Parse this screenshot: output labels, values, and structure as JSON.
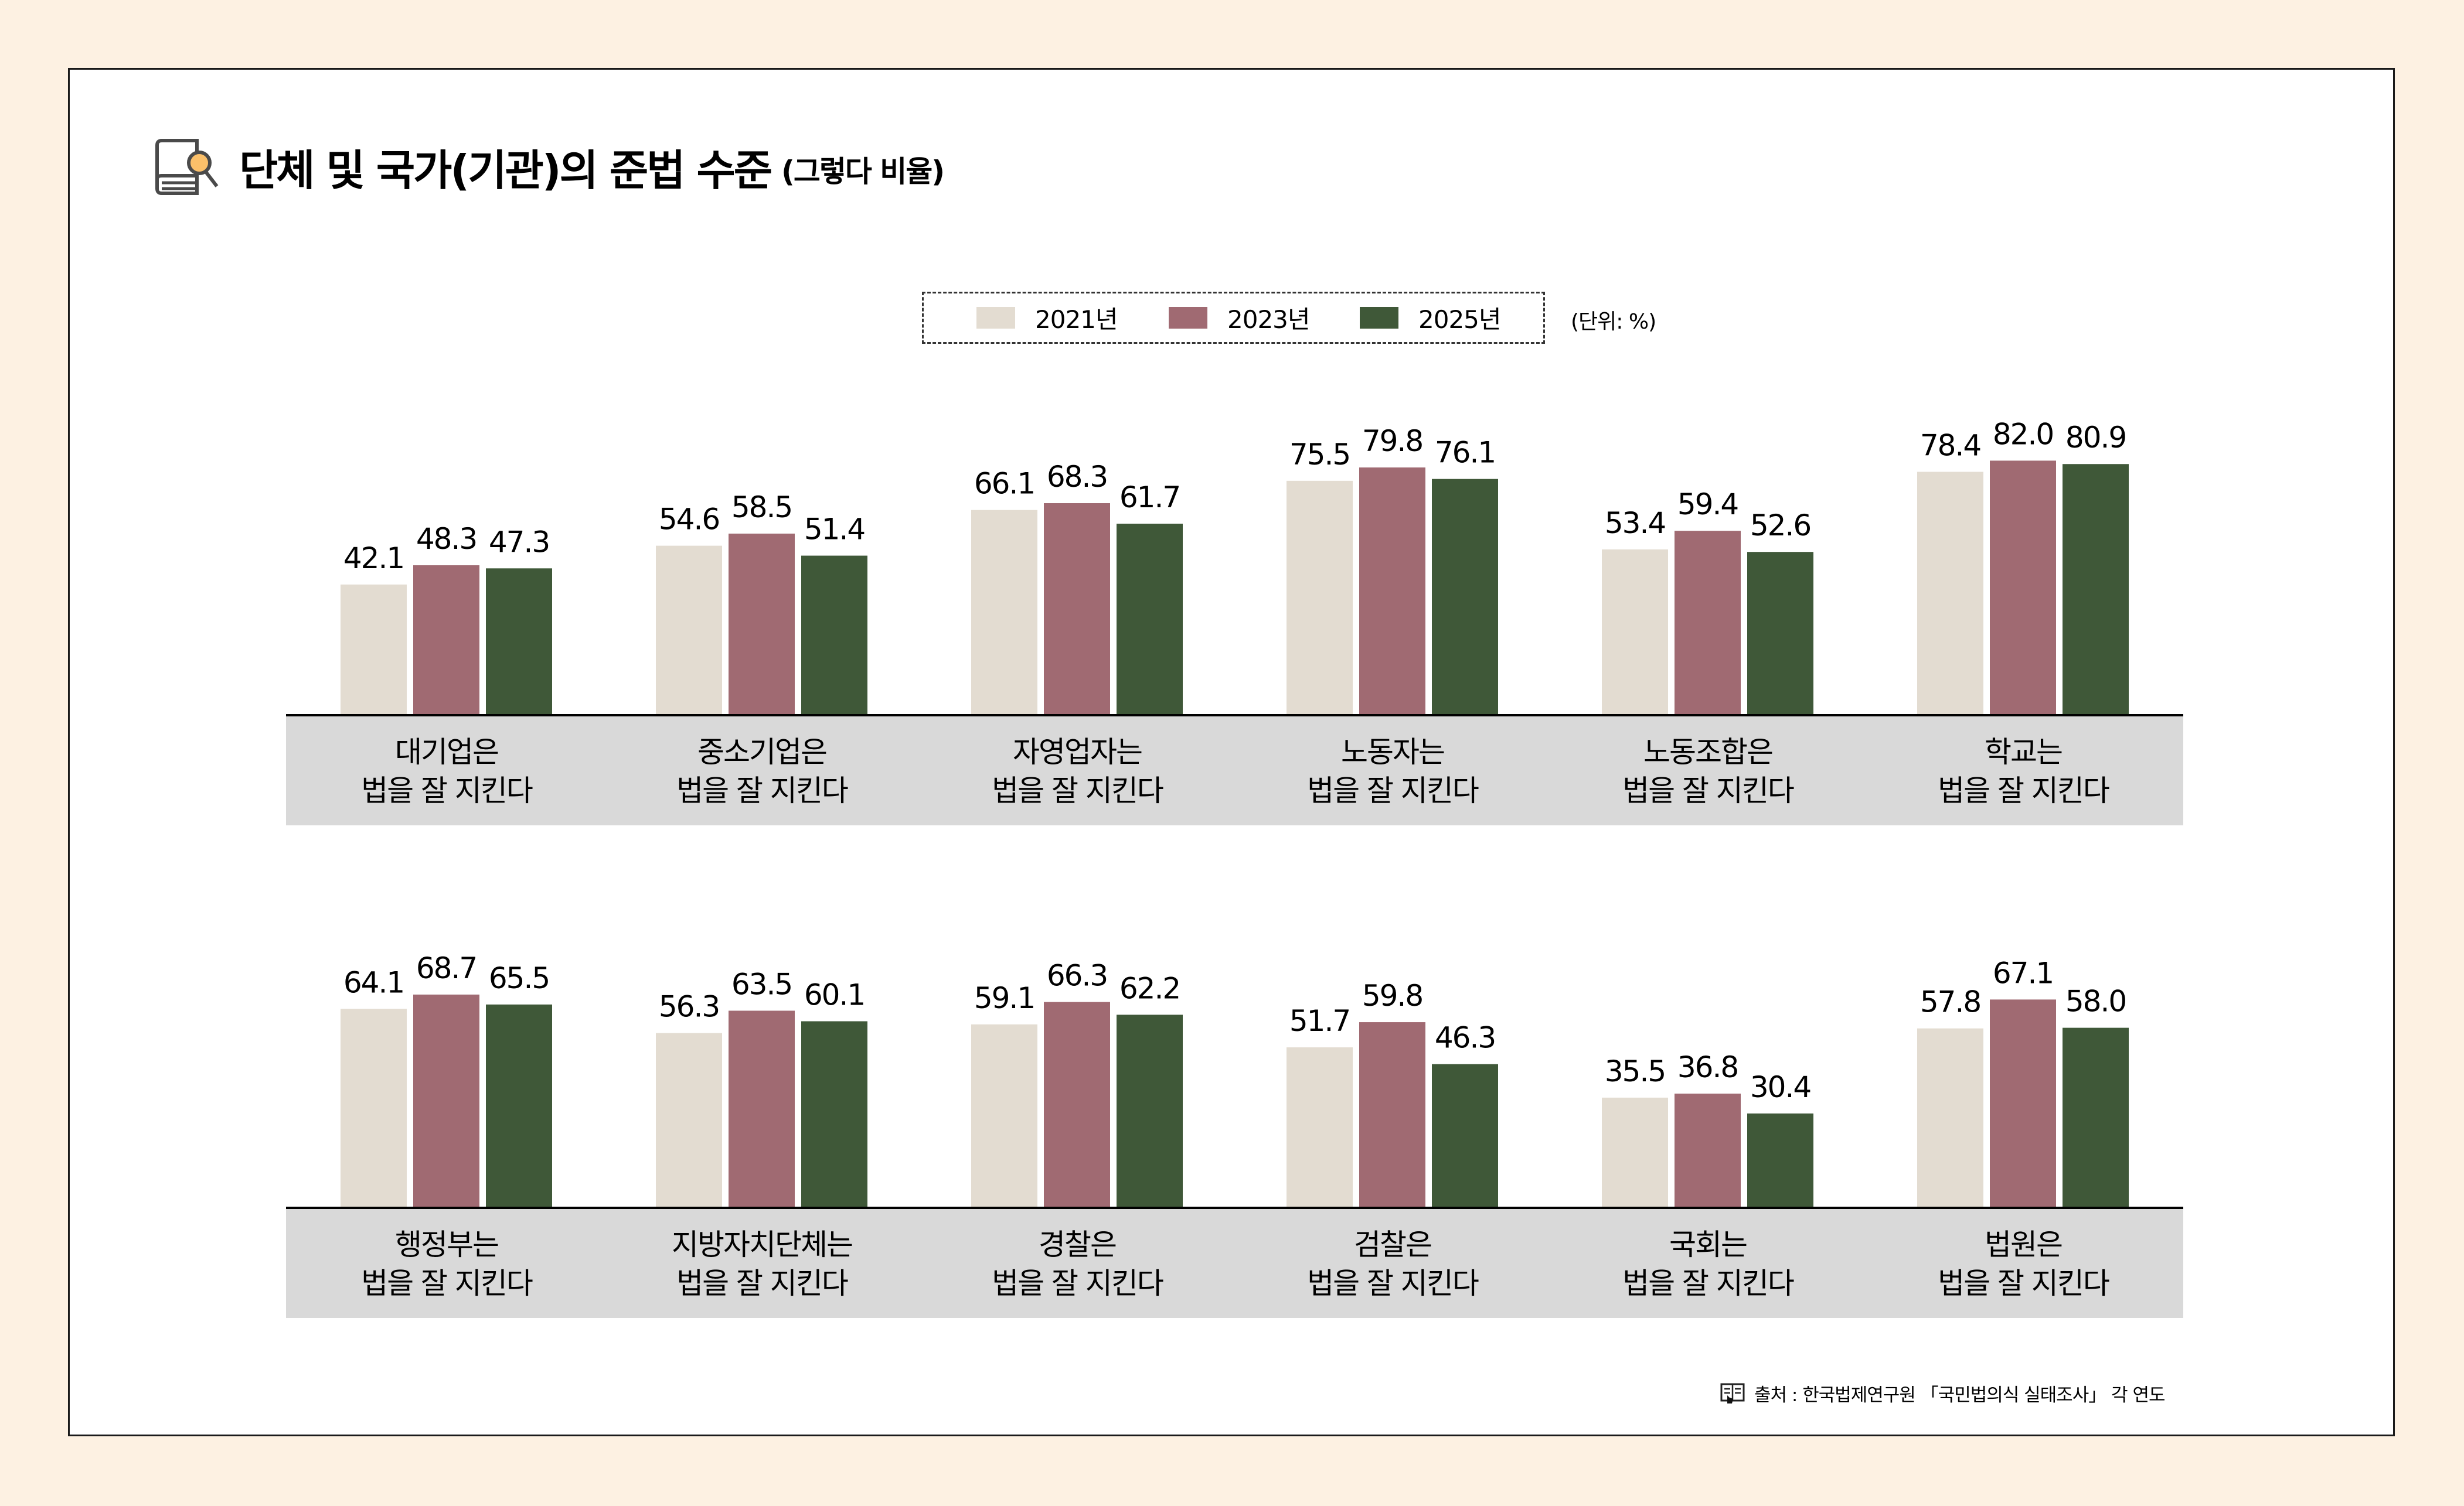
{
  "header": {
    "title": "단체 및 국가(기관)의 준법 수준",
    "subtitle": "(그렇다 비율)",
    "icon": "book-search-icon"
  },
  "legend": {
    "items": [
      {
        "label": "2021년",
        "color": "#e3dcd1"
      },
      {
        "label": "2023년",
        "color": "#a06a72"
      },
      {
        "label": "2025년",
        "color": "#3f5838"
      }
    ],
    "unit": "(단위: %)"
  },
  "source": {
    "icon": "document-pointer-icon",
    "text": "출처 : 한국법제연구원 「국민법의식 실태조사」 각 연도"
  },
  "chart_data": [
    {
      "type": "bar",
      "title": "단체 및 국가(기관)의 준법 수준 (그렇다 비율)",
      "xlabel": "",
      "ylabel": "",
      "unit": "%",
      "ylim": [
        0,
        100
      ],
      "grid": false,
      "legend_position": "top-center",
      "categories": [
        {
          "line1": "대기업은",
          "line2": "법을 잘 지킨다"
        },
        {
          "line1": "중소기업은",
          "line2": "법을 잘 지킨다"
        },
        {
          "line1": "자영업자는",
          "line2": "법을 잘 지킨다"
        },
        {
          "line1": "노동자는",
          "line2": "법을 잘 지킨다"
        },
        {
          "line1": "노동조합은",
          "line2": "법을 잘 지킨다"
        },
        {
          "line1": "학교는",
          "line2": "법을 잘 지킨다"
        }
      ],
      "series": [
        {
          "name": "2021년",
          "values": [
            42.1,
            54.6,
            66.1,
            75.5,
            53.4,
            78.4
          ],
          "labels": [
            "42.1",
            "54.6",
            "66.1",
            "75.5",
            "53.4",
            "78.4"
          ]
        },
        {
          "name": "2023년",
          "values": [
            48.3,
            58.5,
            68.3,
            79.8,
            59.4,
            82.0
          ],
          "labels": [
            "48.3",
            "58.5",
            "68.3",
            "79.8",
            "59.4",
            "82.0"
          ]
        },
        {
          "name": "2025년",
          "values": [
            47.3,
            51.4,
            61.7,
            76.1,
            52.6,
            80.9
          ],
          "labels": [
            "47.3",
            "51.4",
            "61.7",
            "76.1",
            "52.6",
            "80.9"
          ]
        }
      ]
    },
    {
      "type": "bar",
      "title": "단체 및 국가(기관)의 준법 수준 (그렇다 비율)",
      "xlabel": "",
      "ylabel": "",
      "unit": "%",
      "ylim": [
        0,
        100
      ],
      "grid": false,
      "legend_position": "top-center",
      "categories": [
        {
          "line1": "행정부는",
          "line2": "법을 잘 지킨다"
        },
        {
          "line1": "지방자치단체는",
          "line2": "법을 잘 지킨다"
        },
        {
          "line1": "경찰은",
          "line2": "법을 잘 지킨다"
        },
        {
          "line1": "검찰은",
          "line2": "법을 잘 지킨다"
        },
        {
          "line1": "국회는",
          "line2": "법을 잘 지킨다"
        },
        {
          "line1": "법원은",
          "line2": "법을 잘 지킨다"
        }
      ],
      "series": [
        {
          "name": "2021년",
          "values": [
            64.1,
            56.3,
            59.1,
            51.7,
            35.5,
            57.8
          ],
          "labels": [
            "64.1",
            "56.3",
            "59.1",
            "51.7",
            "35.5",
            "57.8"
          ]
        },
        {
          "name": "2023년",
          "values": [
            68.7,
            63.5,
            66.3,
            59.8,
            36.8,
            67.1
          ],
          "labels": [
            "68.7",
            "63.5",
            "66.3",
            "59.8",
            "36.8",
            "67.1"
          ]
        },
        {
          "name": "2025년",
          "values": [
            65.5,
            60.1,
            62.2,
            46.3,
            30.4,
            58.0
          ],
          "labels": [
            "65.5",
            "60.1",
            "62.2",
            "46.3",
            "30.4",
            "58.0"
          ]
        }
      ]
    }
  ]
}
